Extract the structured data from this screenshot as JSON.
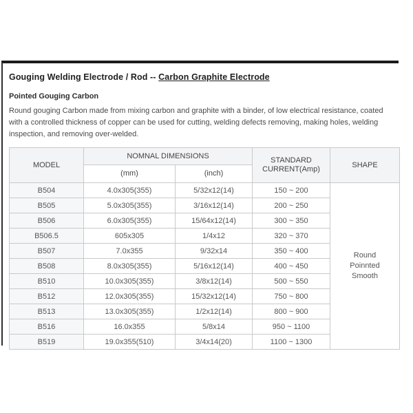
{
  "page": {
    "title": {
      "prefix": "Gouging Welding Electrode / Rod -- ",
      "link": "Carbon Graphite Electrode"
    },
    "section_heading": "Pointed Gouging Carbon",
    "description": "Round gouging Carbon made from mixing carbon and graphite with a binder, of low electrical resistance, coated with a controlled thickness of copper can be used for cutting, welding defects removing, making holes, welding inspection, and removing over-welded."
  },
  "spec_table": {
    "headers": {
      "model": "MODEL",
      "nominal_dimensions": "NOMNAL DIMENSIONS",
      "mm": "(mm)",
      "inch": "(inch)",
      "standard_current": "STANDARD CURRENT(Amp)",
      "shape": "SHAPE"
    },
    "shape_value": "Round\nPoinnted\nSmooth",
    "rows": [
      {
        "model": "B504",
        "mm": "4.0x305(355)",
        "inch": "5/32x12(14)",
        "current": "150 ~ 200"
      },
      {
        "model": "B505",
        "mm": "5.0x305(355)",
        "inch": "3/16x12(14)",
        "current": "200 ~ 250"
      },
      {
        "model": "B506",
        "mm": "6.0x305(355)",
        "inch": "15/64x12(14)",
        "current": "300 ~ 350"
      },
      {
        "model": "B506.5",
        "mm": "605x305",
        "inch": "1/4x12",
        "current": "320 ~ 370"
      },
      {
        "model": "B507",
        "mm": "7.0x355",
        "inch": "9/32x14",
        "current": "350 ~ 400"
      },
      {
        "model": "B508",
        "mm": "8.0x305(355)",
        "inch": "5/16x12(14)",
        "current": "400 ~ 450"
      },
      {
        "model": "B510",
        "mm": "10.0x305(355)",
        "inch": "3/8x12(14)",
        "current": "500 ~ 550"
      },
      {
        "model": "B512",
        "mm": "12.0x305(355)",
        "inch": "15/32x12(14)",
        "current": "750 ~ 800"
      },
      {
        "model": "B513",
        "mm": "13.0x305(355)",
        "inch": "1/2x12(14)",
        "current": "800 ~ 900"
      },
      {
        "model": "B516",
        "mm": "16.0x355",
        "inch": "5/8x14",
        "current": "950 ~ 1100"
      },
      {
        "model": "B519",
        "mm": "19.0x355(510)",
        "inch": "3/4x14(20)",
        "current": "1100 ~ 1300"
      }
    ]
  },
  "colors": {
    "top_border": "#1b1b1b",
    "left_border": "#2e2e2e",
    "table_border": "#c9c9c9",
    "header_bg": "#f3f4f6",
    "model_col_bg": "#f6f7f9",
    "body_text": "#4a4a4a"
  }
}
